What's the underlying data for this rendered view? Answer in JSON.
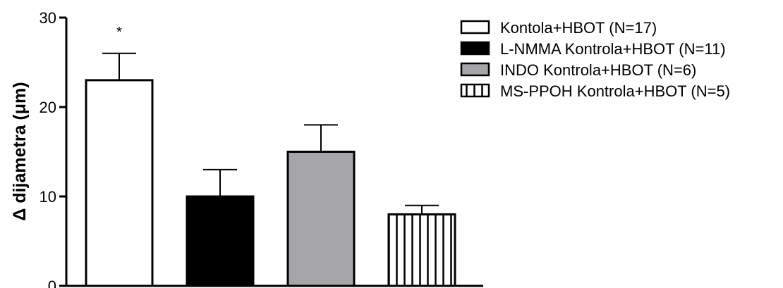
{
  "chart_data": {
    "type": "bar",
    "title": "",
    "xlabel": "",
    "ylabel": "Δ dijametra (μm)",
    "ylim": [
      0,
      30
    ],
    "yticks": [
      0,
      10,
      20,
      30
    ],
    "grid": false,
    "legend_position": "top-right",
    "series": [
      {
        "name": "Kontola+HBOT (N=17)",
        "value": 23,
        "error": 3,
        "fill": "#ffffff",
        "pattern": "solid",
        "annotation": "*"
      },
      {
        "name": "L-NMMA Kontrola+HBOT (N=11)",
        "value": 10,
        "error": 3,
        "fill": "#000000",
        "pattern": "solid",
        "annotation": ""
      },
      {
        "name": "INDO Kontrola+HBOT (N=6)",
        "value": 15,
        "error": 3,
        "fill": "#a6a6a8",
        "pattern": "solid",
        "annotation": ""
      },
      {
        "name": "MS-PPOH Kontrola+HBOT (N=5)",
        "value": 8,
        "error": 1,
        "fill": "#ffffff",
        "pattern": "vertical-stripes",
        "annotation": ""
      }
    ]
  }
}
